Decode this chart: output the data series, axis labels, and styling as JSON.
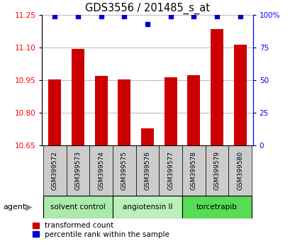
{
  "title": "GDS3556 / 201485_s_at",
  "samples": [
    "GSM399572",
    "GSM399573",
    "GSM399574",
    "GSM399575",
    "GSM399576",
    "GSM399577",
    "GSM399578",
    "GSM399579",
    "GSM399580"
  ],
  "red_values": [
    10.955,
    11.095,
    10.97,
    10.955,
    10.73,
    10.965,
    10.975,
    11.185,
    11.115
  ],
  "blue_values": [
    99,
    99,
    99,
    99,
    93,
    99,
    99,
    99,
    99
  ],
  "ymin": 10.65,
  "ymax": 11.25,
  "yticks_left": [
    10.65,
    10.8,
    10.95,
    11.1,
    11.25
  ],
  "yticks_right": [
    0,
    25,
    50,
    75,
    100
  ],
  "agents": [
    {
      "label": "solvent control",
      "start": 0,
      "end": 2,
      "color": "#aaeaaa"
    },
    {
      "label": "angiotensin II",
      "start": 3,
      "end": 5,
      "color": "#bbf0bb"
    },
    {
      "label": "torcetrapib",
      "start": 6,
      "end": 8,
      "color": "#55dd55"
    }
  ],
  "bar_color": "#CC0000",
  "dot_color": "#0000CC",
  "sample_box_color": "#cccccc",
  "label_red": "transformed count",
  "label_blue": "percentile rank within the sample",
  "agent_label": "agent"
}
